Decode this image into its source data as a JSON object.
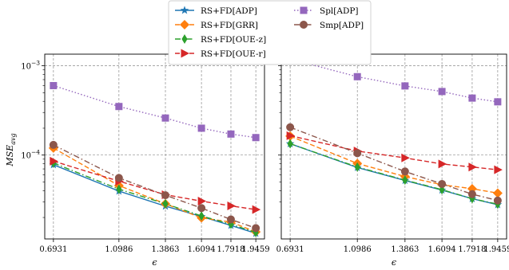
{
  "chart_data": [
    {
      "type": "line",
      "panel": "left",
      "x": [
        0.6931,
        1.0986,
        1.3863,
        1.6094,
        1.7918,
        1.9459
      ],
      "xtick_labels": [
        "0.6931",
        "1.0986",
        "1.3863",
        "1.6094",
        "1.7918",
        "1.9459"
      ],
      "xlabel": "ϵ",
      "ylabel": "MSE_avg",
      "ylabel_main": "MSE",
      "ylabel_sub": "avg",
      "yscale": "log",
      "ylim": [
        1.15e-05,
        0.00135
      ],
      "ytick_major": [
        0.0001,
        0.001
      ],
      "ytick_major_labels": [
        {
          "base": "10",
          "exp": "−4"
        },
        {
          "base": "10",
          "exp": "−3"
        }
      ],
      "grid": true,
      "series": [
        {
          "name": "RS+FD[ADP]",
          "color": "#1f77b4",
          "linestyle": "solid",
          "marker": "star",
          "values": [
            7.8e-05,
            3.95e-05,
            2.68e-05,
            2.05e-05,
            1.63e-05,
            1.33e-05
          ]
        },
        {
          "name": "RS+FD[GRR]",
          "color": "#ff7f0e",
          "linestyle": "dashed",
          "marker": "diamond",
          "values": [
            0.00012,
            4.55e-05,
            2.85e-05,
            1.98e-05,
            1.78e-05,
            1.38e-05
          ]
        },
        {
          "name": "RS+FD[OUE-z]",
          "color": "#2ca02c",
          "linestyle": "dashdot",
          "marker": "thin_diamond",
          "values": [
            8.15e-05,
            4.15e-05,
            2.85e-05,
            2.08e-05,
            1.68e-05,
            1.36e-05
          ]
        },
        {
          "name": "RS+FD[OUE-r]",
          "color": "#d62728",
          "linestyle": "dashed",
          "marker": "triangle-right",
          "values": [
            8.55e-05,
            5.1e-05,
            3.6e-05,
            3.05e-05,
            2.7e-05,
            2.45e-05
          ]
        },
        {
          "name": "Spl[ADP]",
          "color": "#9467bd",
          "linestyle": "dotted",
          "marker": "square",
          "values": [
            0.0006,
            0.00035,
            0.00026,
            0.0002,
            0.000172,
            0.000157
          ]
        },
        {
          "name": "Smp[ADP]",
          "color": "#8c564b",
          "linestyle": "dashdot",
          "marker": "circle",
          "values": [
            0.00013,
            5.55e-05,
            3.55e-05,
            2.55e-05,
            1.9e-05,
            1.52e-05
          ]
        }
      ]
    },
    {
      "type": "line",
      "panel": "right",
      "x": [
        0.6931,
        1.0986,
        1.3863,
        1.6094,
        1.7918,
        1.9459
      ],
      "xtick_labels": [
        "0.6931",
        "1.0986",
        "1.3863",
        "1.6094",
        "1.7918",
        "1.9459"
      ],
      "xlabel": "ϵ",
      "yscale": "log",
      "ylim": [
        1.15e-05,
        0.00135
      ],
      "ytick_major": [
        0.0001,
        0.001
      ],
      "grid": true,
      "series": [
        {
          "name": "RS+FD[ADP]",
          "color": "#1f77b4",
          "linestyle": "solid",
          "marker": "star",
          "values": [
            0.000134,
            7.25e-05,
            5.2e-05,
            4.05e-05,
            3.25e-05,
            2.78e-05
          ]
        },
        {
          "name": "RS+FD[GRR]",
          "color": "#ff7f0e",
          "linestyle": "dashed",
          "marker": "diamond",
          "values": [
            0.000163,
            8.05e-05,
            5.75e-05,
            4.65e-05,
            4.2e-05,
            3.75e-05
          ]
        },
        {
          "name": "RS+FD[OUE-z]",
          "color": "#2ca02c",
          "linestyle": "dashdot",
          "marker": "thin_diamond",
          "values": [
            0.000134,
            7.35e-05,
            5.25e-05,
            4.1e-05,
            3.25e-05,
            2.82e-05
          ]
        },
        {
          "name": "RS+FD[OUE-r]",
          "color": "#d62728",
          "linestyle": "dashed",
          "marker": "triangle-right",
          "values": [
            0.000165,
            0.000111,
            9.3e-05,
            7.95e-05,
            7.35e-05,
            6.85e-05
          ]
        },
        {
          "name": "Spl[ADP]",
          "color": "#9467bd",
          "linestyle": "dotted",
          "marker": "square",
          "values": [
            0.00119,
            0.000755,
            0.000595,
            0.000515,
            0.000435,
            0.000395
          ]
        },
        {
          "name": "Smp[ADP]",
          "color": "#8c564b",
          "linestyle": "dashdot",
          "marker": "circle",
          "values": [
            0.000205,
            0.000105,
            6.55e-05,
            4.75e-05,
            3.65e-05,
            3.1e-05
          ]
        }
      ]
    }
  ]
}
